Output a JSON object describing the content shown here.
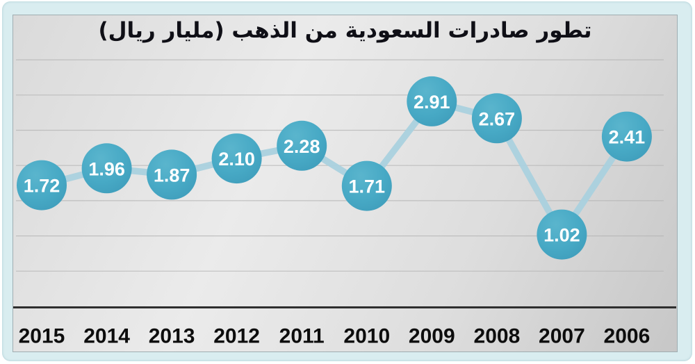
{
  "chart_data": {
    "type": "line",
    "title": "تطور صادرات السعودية من الذهب (مليار ريال)",
    "unit_label": "مليار ريال",
    "categories": [
      "2015",
      "2014",
      "2013",
      "2012",
      "2011",
      "2010",
      "2009",
      "2008",
      "2007",
      "2006"
    ],
    "values": [
      1.72,
      1.96,
      1.87,
      2.1,
      2.28,
      1.71,
      2.91,
      2.67,
      1.02,
      2.41
    ],
    "value_labels": [
      "1.72",
      "1.96",
      "1.87",
      "2.10",
      "2.28",
      "1.71",
      "2.91",
      "2.67",
      "1.02",
      "2.41"
    ],
    "x_axis_note": "years run right-to-left chronologically (2015 leftmost, 2006 rightmost)",
    "ylim": [
      0,
      3.5
    ],
    "gridline_step": 0.5,
    "grid_visible": true,
    "y_axis_labels_visible": false,
    "legend": "none",
    "colors": {
      "marker_fill": "#47a9c5",
      "marker_fill_light": "#5ab5cd",
      "marker_fill_dark": "#3f9dbb",
      "connector_line": "#aad1de",
      "value_label": "#ffffff",
      "gridline": "#b3b3b3",
      "axis_line": "#2e2e2e",
      "year_label": "#0d0d0d",
      "frame": "#d9edf0",
      "title": "#0f0f16"
    }
  }
}
